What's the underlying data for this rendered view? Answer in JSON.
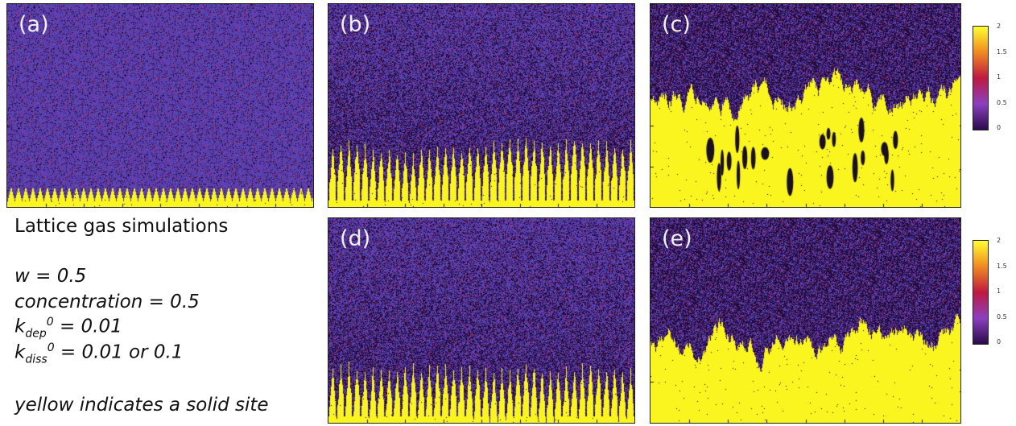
{
  "panels": [
    {
      "label": "(a)",
      "front": 0.94,
      "spikes": "fine"
    },
    {
      "label": "(b)",
      "front": 0.7,
      "spikes": "tall"
    },
    {
      "label": "(c)",
      "front": 0.45,
      "spikes": "bulk"
    },
    {
      "label": "(d)",
      "front": 0.73,
      "spikes": "tall"
    },
    {
      "label": "(e)",
      "front": 0.58,
      "spikes": "bulk2"
    }
  ],
  "colorbar": {
    "ticks": [
      "2",
      "1.5",
      "1",
      "0.5",
      "0"
    ],
    "colors": [
      "#ffff30",
      "#f08a20",
      "#c01840",
      "#8a40c0",
      "#2a0a4a"
    ]
  },
  "info": {
    "title": "Lattice gas simulations",
    "w": "w = 0.5",
    "concentration": "concentration = 0.5",
    "kdep_k": "k",
    "kdep_sub": "dep",
    "kdep_sup": "0",
    "kdep_val": " = 0.01",
    "kdiss_k": "k",
    "kdiss_sub": "diss",
    "kdiss_sup": "0",
    "kdiss_val": " = 0.01 or 0.1",
    "note": "yellow indicates a solid site"
  }
}
